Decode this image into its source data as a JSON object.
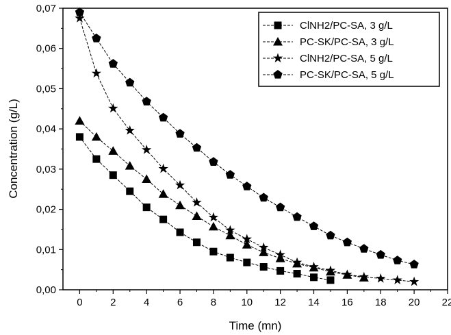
{
  "chart_data": {
    "type": "line",
    "title": "",
    "xlabel": "Time (mn)",
    "ylabel": "Concentration (g/L)",
    "xlim": [
      -1,
      22
    ],
    "ylim": [
      0,
      0.07
    ],
    "x_ticks": [
      "0",
      "2",
      "4",
      "6",
      "8",
      "10",
      "12",
      "14",
      "16",
      "18",
      "20",
      "22"
    ],
    "y_ticks": [
      "0,00",
      "0,01",
      "0,02",
      "0,03",
      "0,04",
      "0,05",
      "0,06",
      "0,07"
    ],
    "grid": false,
    "legend_position": "top-right",
    "series": [
      {
        "name": "ClNH2/PC-SA, 3 g/L",
        "marker": "square",
        "x": [
          0,
          1,
          2,
          3,
          4,
          5,
          6,
          7,
          8,
          9,
          10,
          11,
          12,
          13,
          14,
          15
        ],
        "y": [
          0.038,
          0.0325,
          0.0285,
          0.0245,
          0.0205,
          0.0175,
          0.0143,
          0.0118,
          0.0095,
          0.008,
          0.0068,
          0.0057,
          0.0047,
          0.004,
          0.0031,
          0.0024
        ]
      },
      {
        "name": "PC-SK/PC-SA, 3 g/L",
        "marker": "triangle",
        "x": [
          0,
          1,
          2,
          3,
          4,
          5,
          6,
          7,
          8,
          9,
          10,
          11,
          12,
          13,
          14,
          15,
          16,
          17
        ],
        "y": [
          0.042,
          0.038,
          0.0345,
          0.0308,
          0.0275,
          0.0238,
          0.021,
          0.0183,
          0.0157,
          0.0135,
          0.0112,
          0.0093,
          0.0078,
          0.0065,
          0.0055,
          0.0045,
          0.0037,
          0.003
        ]
      },
      {
        "name": "ClNH2/PC-SA, 5 g/L",
        "marker": "star",
        "x": [
          0,
          1,
          2,
          3,
          4,
          5,
          6,
          7,
          8,
          9,
          10,
          11,
          12,
          13,
          14,
          15,
          16,
          17,
          18,
          19,
          20
        ],
        "y": [
          0.0675,
          0.0538,
          0.0451,
          0.0396,
          0.0348,
          0.0301,
          0.026,
          0.0217,
          0.018,
          0.0148,
          0.0126,
          0.0105,
          0.0087,
          0.0068,
          0.0057,
          0.0048,
          0.0038,
          0.0032,
          0.0028,
          0.0024,
          0.002
        ]
      },
      {
        "name": "PC-SK/PC-SA, 5 g/L",
        "marker": "pentagon",
        "x": [
          0,
          1,
          2,
          3,
          4,
          5,
          6,
          7,
          8,
          9,
          10,
          11,
          12,
          13,
          14,
          15,
          16,
          17,
          18,
          19,
          20
        ],
        "y": [
          0.069,
          0.0625,
          0.0562,
          0.0515,
          0.0468,
          0.0428,
          0.0388,
          0.0353,
          0.0318,
          0.0286,
          0.0257,
          0.0229,
          0.0205,
          0.0181,
          0.0158,
          0.0135,
          0.0118,
          0.0102,
          0.0087,
          0.0073,
          0.0063
        ]
      }
    ]
  }
}
